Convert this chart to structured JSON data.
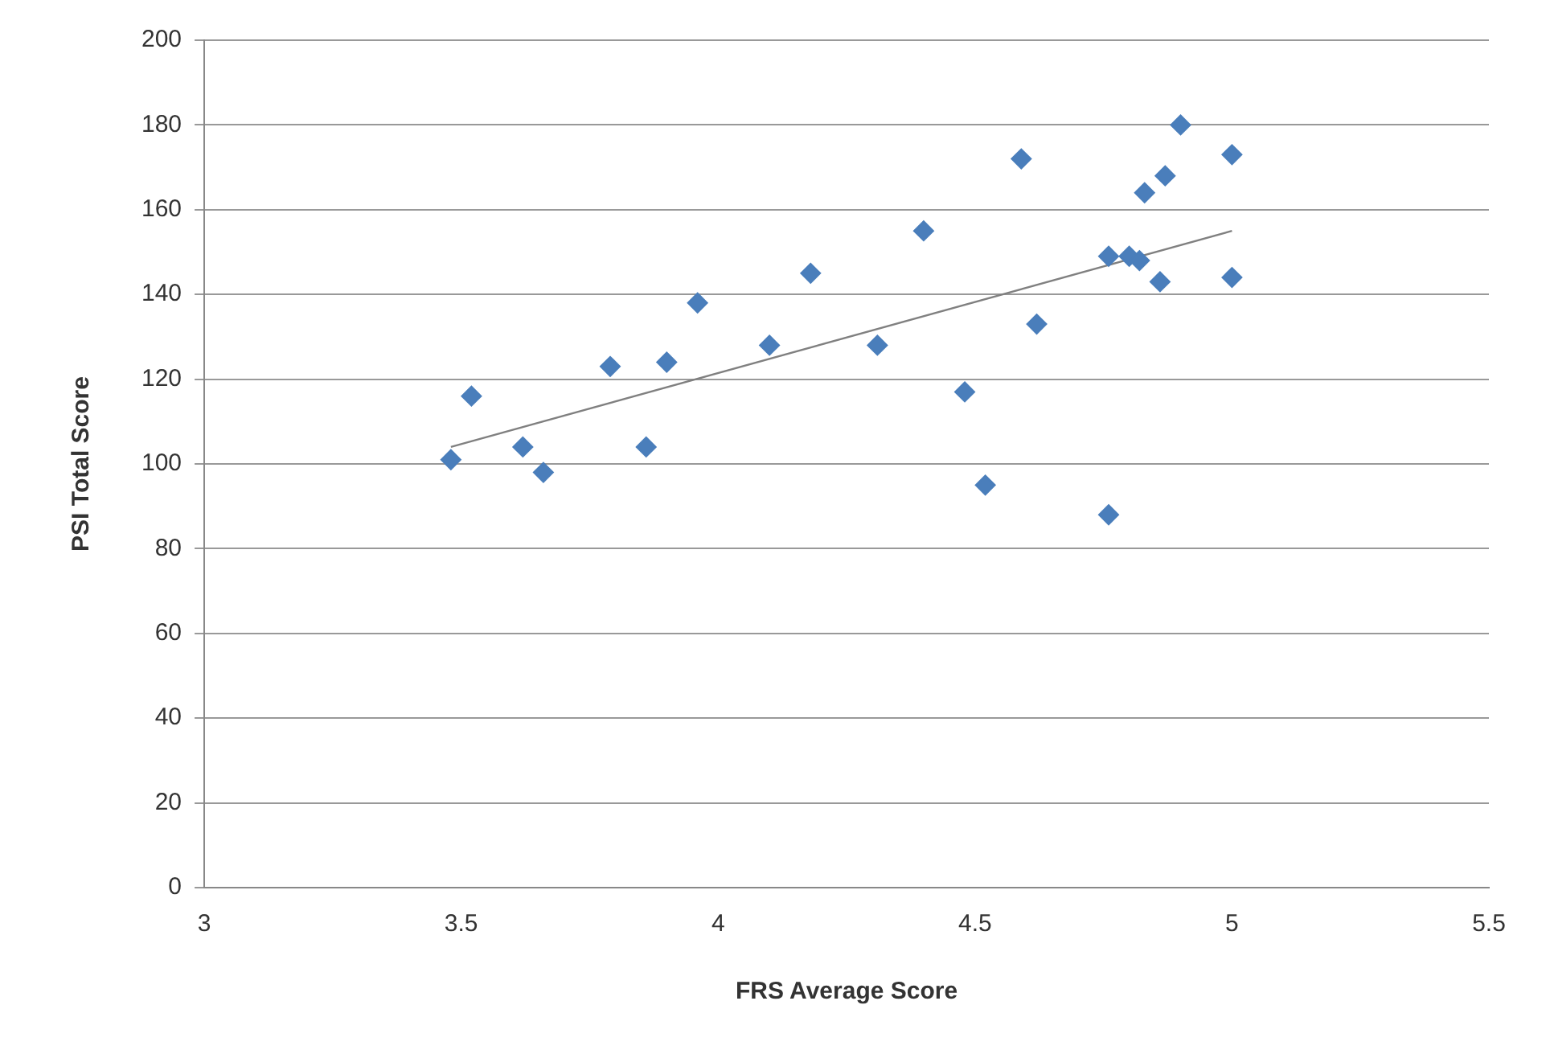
{
  "chart_data": {
    "type": "scatter",
    "xlabel": "FRS Average Score",
    "ylabel": "PSI Total Score",
    "xlim": [
      3,
      5.5
    ],
    "xticks": [
      3,
      3.5,
      4,
      4.5,
      5,
      5.5
    ],
    "ylim": [
      0,
      200
    ],
    "yticks": [
      0,
      20,
      40,
      60,
      80,
      100,
      120,
      140,
      160,
      180,
      200
    ],
    "grid": "y",
    "series": [
      {
        "color": "#4a7ebb",
        "marker": "diamond",
        "x": [
          3.48,
          3.52,
          3.62,
          3.66,
          3.79,
          3.86,
          3.9,
          3.96,
          4.1,
          4.18,
          4.31,
          4.4,
          4.48,
          4.52,
          4.59,
          4.62,
          4.76,
          4.76,
          4.8,
          4.82,
          4.83,
          4.86,
          4.87,
          4.9,
          5.0,
          5.0
        ],
        "values": [
          101,
          116,
          104,
          98,
          123,
          104,
          124,
          138,
          128,
          145,
          128,
          155,
          117,
          95,
          172,
          133,
          149,
          88,
          149,
          148,
          164,
          143,
          168,
          180,
          173,
          144
        ]
      },
      {
        "type": "line",
        "color": "#808080",
        "marker": "none",
        "x": [
          3.48,
          5.0
        ],
        "values": [
          104,
          155
        ]
      }
    ]
  }
}
